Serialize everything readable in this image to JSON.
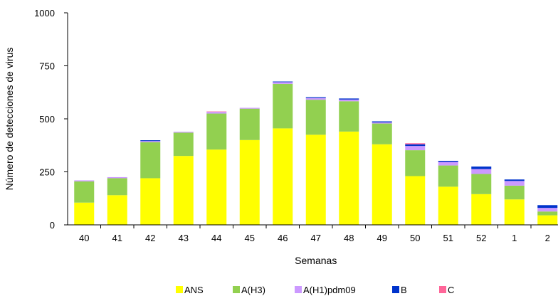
{
  "chart_data": {
    "type": "bar",
    "stacked": true,
    "categories": [
      "40",
      "41",
      "42",
      "43",
      "44",
      "45",
      "46",
      "47",
      "48",
      "49",
      "50",
      "51",
      "52",
      "1",
      "2"
    ],
    "series": [
      {
        "name": "ANS",
        "color": "#FFFF00",
        "values": [
          105,
          140,
          220,
          325,
          355,
          400,
          455,
          425,
          440,
          380,
          230,
          180,
          145,
          120,
          45
        ]
      },
      {
        "name": "A(H3)",
        "color": "#92D050",
        "values": [
          100,
          80,
          170,
          110,
          170,
          148,
          210,
          165,
          143,
          98,
          122,
          100,
          95,
          65,
          18
        ]
      },
      {
        "name": "A(H1)pdm09",
        "color": "#CC99FF",
        "values": [
          5,
          5,
          5,
          4,
          8,
          4,
          8,
          8,
          8,
          5,
          20,
          17,
          23,
          22,
          17
        ]
      },
      {
        "name": "B",
        "color": "#0033CC",
        "values": [
          0,
          0,
          4,
          0,
          0,
          0,
          3,
          4,
          5,
          5,
          8,
          5,
          12,
          7,
          13
        ]
      },
      {
        "name": "C",
        "color": "#FF6699",
        "values": [
          0,
          0,
          0,
          0,
          2,
          0,
          0,
          0,
          0,
          0,
          5,
          0,
          0,
          0,
          0
        ]
      }
    ],
    "xlabel": "Semanas",
    "ylabel": "Número de detecciones de virus",
    "ylim": [
      0,
      1000
    ],
    "yticks": [
      0,
      250,
      500,
      750,
      1000
    ],
    "grid": false,
    "legend_position": "bottom"
  }
}
